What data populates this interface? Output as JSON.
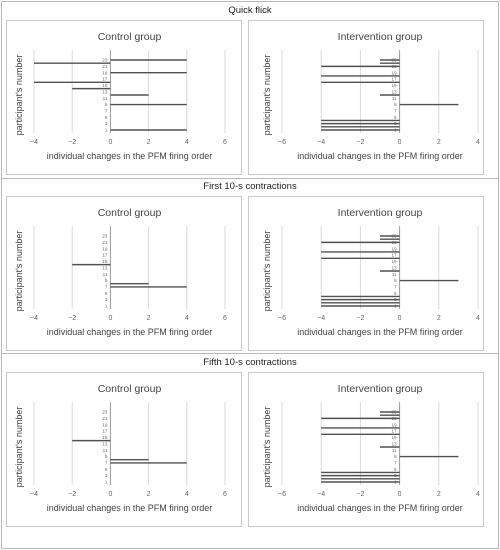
{
  "sections": [
    {
      "title": "Quick flick"
    },
    {
      "title": "First 10-s contractions"
    },
    {
      "title": "Fifth 10-s contractions"
    }
  ],
  "chart_data": [
    {
      "type": "bar",
      "orientation": "horizontal",
      "title": "Control group",
      "section": "Quick flick",
      "xlabel": "individual changes in the PFM firing order",
      "ylabel": "participant's number",
      "xlim": [
        -4,
        6
      ],
      "xticks": [
        -4,
        -2,
        0,
        2,
        4,
        6
      ],
      "categories": [
        1,
        2,
        3,
        4,
        5,
        6,
        7,
        8,
        9,
        10,
        11,
        12,
        13,
        14,
        15,
        16,
        17,
        18,
        19,
        20,
        21,
        22,
        23
      ],
      "tick_labels": [
        "1",
        "3",
        "5",
        "7",
        "9",
        "11",
        "13",
        "15",
        "17",
        "19",
        "21",
        "23"
      ],
      "values": [
        4,
        0,
        0,
        0,
        0,
        0,
        0,
        0,
        4,
        0,
        0,
        2,
        0,
        -2,
        0,
        -4,
        0,
        0,
        4,
        0,
        0,
        -4,
        4
      ],
      "bar_color": "#505050",
      "grid": true
    },
    {
      "type": "bar",
      "orientation": "horizontal",
      "title": "Intervention group",
      "section": "Quick flick",
      "xlabel": "individual changes in the PFM firing order",
      "ylabel": "participant's number",
      "xlim": [
        -6,
        4
      ],
      "xticks": [
        -6,
        -4,
        -2,
        0,
        2,
        4
      ],
      "categories": [
        1,
        2,
        3,
        4,
        5,
        6,
        7,
        8,
        9,
        10,
        11,
        12,
        13,
        14,
        15,
        16,
        17,
        18,
        19,
        20,
        21,
        22,
        23
      ],
      "tick_labels": [
        "1",
        "3",
        "5",
        "7",
        "9",
        "11",
        "13",
        "15",
        "17",
        "19",
        "21",
        "23"
      ],
      "values": [
        -4,
        -4,
        -4,
        -4,
        0,
        0,
        0,
        0,
        3,
        0,
        0,
        -1,
        0,
        0,
        0,
        -4,
        0,
        -4,
        0,
        0,
        -4,
        -1,
        -1
      ],
      "bar_color": "#505050",
      "grid": true
    },
    {
      "type": "bar",
      "orientation": "horizontal",
      "title": "Control group",
      "section": "First 10-s contractions",
      "xlabel": "individual changes in the PFM firing order",
      "ylabel": "participant's number",
      "xlim": [
        -4,
        6
      ],
      "xticks": [
        -4,
        -2,
        0,
        2,
        4,
        6
      ],
      "categories": [
        1,
        2,
        3,
        4,
        5,
        6,
        7,
        8,
        9,
        10,
        11,
        12,
        13,
        14,
        15,
        16,
        17,
        18,
        19,
        20,
        21,
        22,
        23
      ],
      "tick_labels": [
        "1",
        "3",
        "5",
        "7",
        "9",
        "11",
        "13",
        "15",
        "17",
        "19",
        "21",
        "23"
      ],
      "values": [
        0,
        0,
        0,
        0,
        0,
        0,
        4,
        2,
        0,
        0,
        0,
        0,
        0,
        -2,
        0,
        0,
        0,
        0,
        0,
        0,
        0,
        0,
        0
      ],
      "bar_color": "#505050",
      "grid": true
    },
    {
      "type": "bar",
      "orientation": "horizontal",
      "title": "Intervention group",
      "section": "First 10-s contractions",
      "xlabel": "individual changes in the PFM firing order",
      "ylabel": "participant's number",
      "xlim": [
        -6,
        4
      ],
      "xticks": [
        -6,
        -4,
        -2,
        0,
        2,
        4
      ],
      "categories": [
        1,
        2,
        3,
        4,
        5,
        6,
        7,
        8,
        9,
        10,
        11,
        12,
        13,
        14,
        15,
        16,
        17,
        18,
        19,
        20,
        21,
        22,
        23
      ],
      "tick_labels": [
        "1",
        "3",
        "5",
        "7",
        "9",
        "11",
        "13",
        "15",
        "17",
        "19",
        "21",
        "23"
      ],
      "values": [
        -4,
        -4,
        -4,
        -4,
        0,
        0,
        0,
        0,
        3,
        0,
        0,
        -1,
        0,
        0,
        0,
        -4,
        0,
        -4,
        0,
        0,
        -4,
        -1,
        -1
      ],
      "bar_color": "#505050",
      "grid": true
    },
    {
      "type": "bar",
      "orientation": "horizontal",
      "title": "Control group",
      "section": "Fifth 10-s contractions",
      "xlabel": "individual changes in the PFM firing order",
      "ylabel": "participant's number",
      "xlim": [
        -4,
        6
      ],
      "xticks": [
        -4,
        -2,
        0,
        2,
        4,
        6
      ],
      "categories": [
        1,
        2,
        3,
        4,
        5,
        6,
        7,
        8,
        9,
        10,
        11,
        12,
        13,
        14,
        15,
        16,
        17,
        18,
        19,
        20,
        21,
        22,
        23
      ],
      "tick_labels": [
        "1",
        "3",
        "5",
        "7",
        "9",
        "11",
        "13",
        "15",
        "17",
        "19",
        "21",
        "23"
      ],
      "values": [
        0,
        0,
        0,
        0,
        0,
        0,
        4,
        2,
        0,
        0,
        0,
        0,
        0,
        -2,
        0,
        0,
        0,
        0,
        0,
        0,
        0,
        0,
        0
      ],
      "bar_color": "#505050",
      "grid": true
    },
    {
      "type": "bar",
      "orientation": "horizontal",
      "title": "Intervention group",
      "section": "Fifth 10-s contractions",
      "xlabel": "individual changes in the PFM firing order",
      "ylabel": "participant's number",
      "xlim": [
        -6,
        4
      ],
      "xticks": [
        -6,
        -4,
        -2,
        0,
        2,
        4
      ],
      "categories": [
        1,
        2,
        3,
        4,
        5,
        6,
        7,
        8,
        9,
        10,
        11,
        12,
        13,
        14,
        15,
        16,
        17,
        18,
        19,
        20,
        21,
        22,
        23
      ],
      "tick_labels": [
        "1",
        "3",
        "5",
        "7",
        "9",
        "11",
        "13",
        "15",
        "17",
        "19",
        "21",
        "23"
      ],
      "values": [
        -4,
        -4,
        -4,
        -4,
        0,
        0,
        0,
        0,
        3,
        0,
        0,
        -1,
        0,
        0,
        0,
        -4,
        0,
        -4,
        0,
        0,
        -4,
        -1,
        -1
      ],
      "bar_color": "#505050",
      "grid": true
    }
  ]
}
